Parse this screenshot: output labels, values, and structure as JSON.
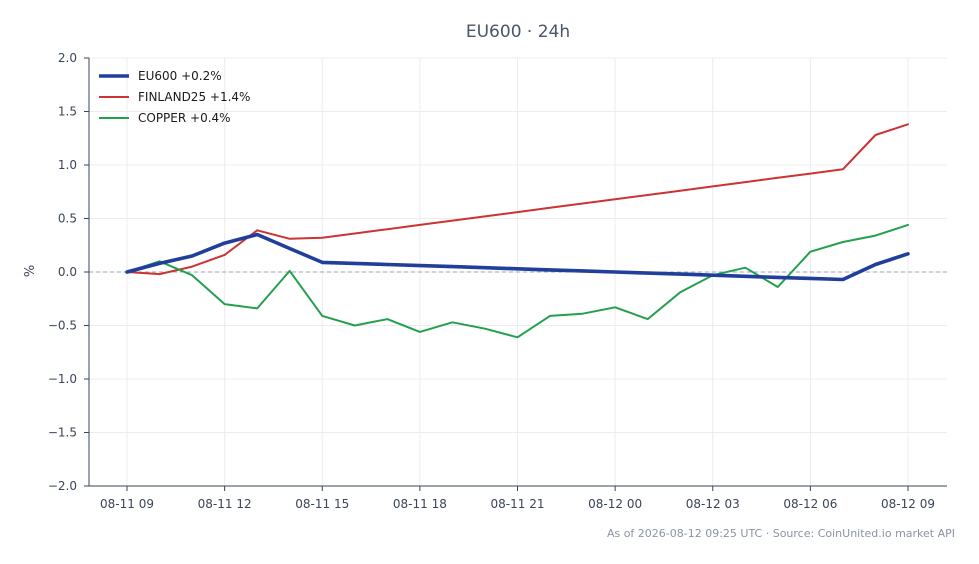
{
  "chart_data": {
    "type": "line",
    "title": "EU600 · 24h",
    "ylabel": "%",
    "ylim": [
      -2.0,
      2.0
    ],
    "yticks": [
      "2.0",
      "1.5",
      "1.0",
      "0.5",
      "0.0",
      "−0.5",
      "−1.0",
      "−1.5",
      "−2.0"
    ],
    "ytick_values": [
      2.0,
      1.5,
      1.0,
      0.5,
      0.0,
      -0.5,
      -1.0,
      -1.5,
      -2.0
    ],
    "x": [
      "08-11 09",
      "08-11 10",
      "08-11 11",
      "08-11 12",
      "08-11 13",
      "08-11 14",
      "08-11 15",
      "08-11 16",
      "08-11 17",
      "08-11 18",
      "08-11 19",
      "08-11 20",
      "08-11 21",
      "08-11 22",
      "08-11 23",
      "08-12 00",
      "08-12 01",
      "08-12 02",
      "08-12 03",
      "08-12 04",
      "08-12 05",
      "08-12 06",
      "08-12 07",
      "08-12 08",
      "08-12 09"
    ],
    "xticks": [
      "08-11 09",
      "08-11 12",
      "08-11 15",
      "08-11 18",
      "08-11 21",
      "08-12 00",
      "08-12 03",
      "08-12 06",
      "08-12 09"
    ],
    "grid": true,
    "zero_line": "dashed",
    "legend_position": "top-left",
    "series": [
      {
        "name": "EU600 +0.2%",
        "color": "#1f3f9a",
        "values": [
          0.0,
          0.08,
          0.15,
          0.27,
          0.35,
          0.22,
          0.09,
          0.08,
          0.07,
          0.06,
          0.05,
          0.04,
          0.03,
          0.02,
          0.01,
          0.0,
          -0.01,
          -0.02,
          -0.03,
          -0.04,
          -0.05,
          -0.06,
          -0.07,
          0.07,
          0.17
        ]
      },
      {
        "name": "FINLAND25 +1.4%",
        "color": "#cc3333",
        "values": [
          0.0,
          -0.02,
          0.05,
          0.16,
          0.39,
          0.31,
          0.32,
          0.36,
          0.4,
          0.44,
          0.48,
          0.52,
          0.56,
          0.6,
          0.64,
          0.68,
          0.72,
          0.76,
          0.8,
          0.84,
          0.88,
          0.92,
          0.96,
          1.28,
          1.38
        ]
      },
      {
        "name": "COPPER +0.4%",
        "color": "#23a04e",
        "values": [
          0.0,
          0.1,
          -0.03,
          -0.3,
          -0.34,
          0.01,
          -0.41,
          -0.5,
          -0.44,
          -0.56,
          -0.47,
          -0.53,
          -0.61,
          -0.41,
          -0.39,
          -0.33,
          -0.44,
          -0.19,
          -0.03,
          0.04,
          -0.14,
          0.19,
          0.28,
          0.34,
          0.44
        ]
      }
    ]
  },
  "footer": "As of 2026-08-12 09:25 UTC · Source: CoinUnited.io market API"
}
